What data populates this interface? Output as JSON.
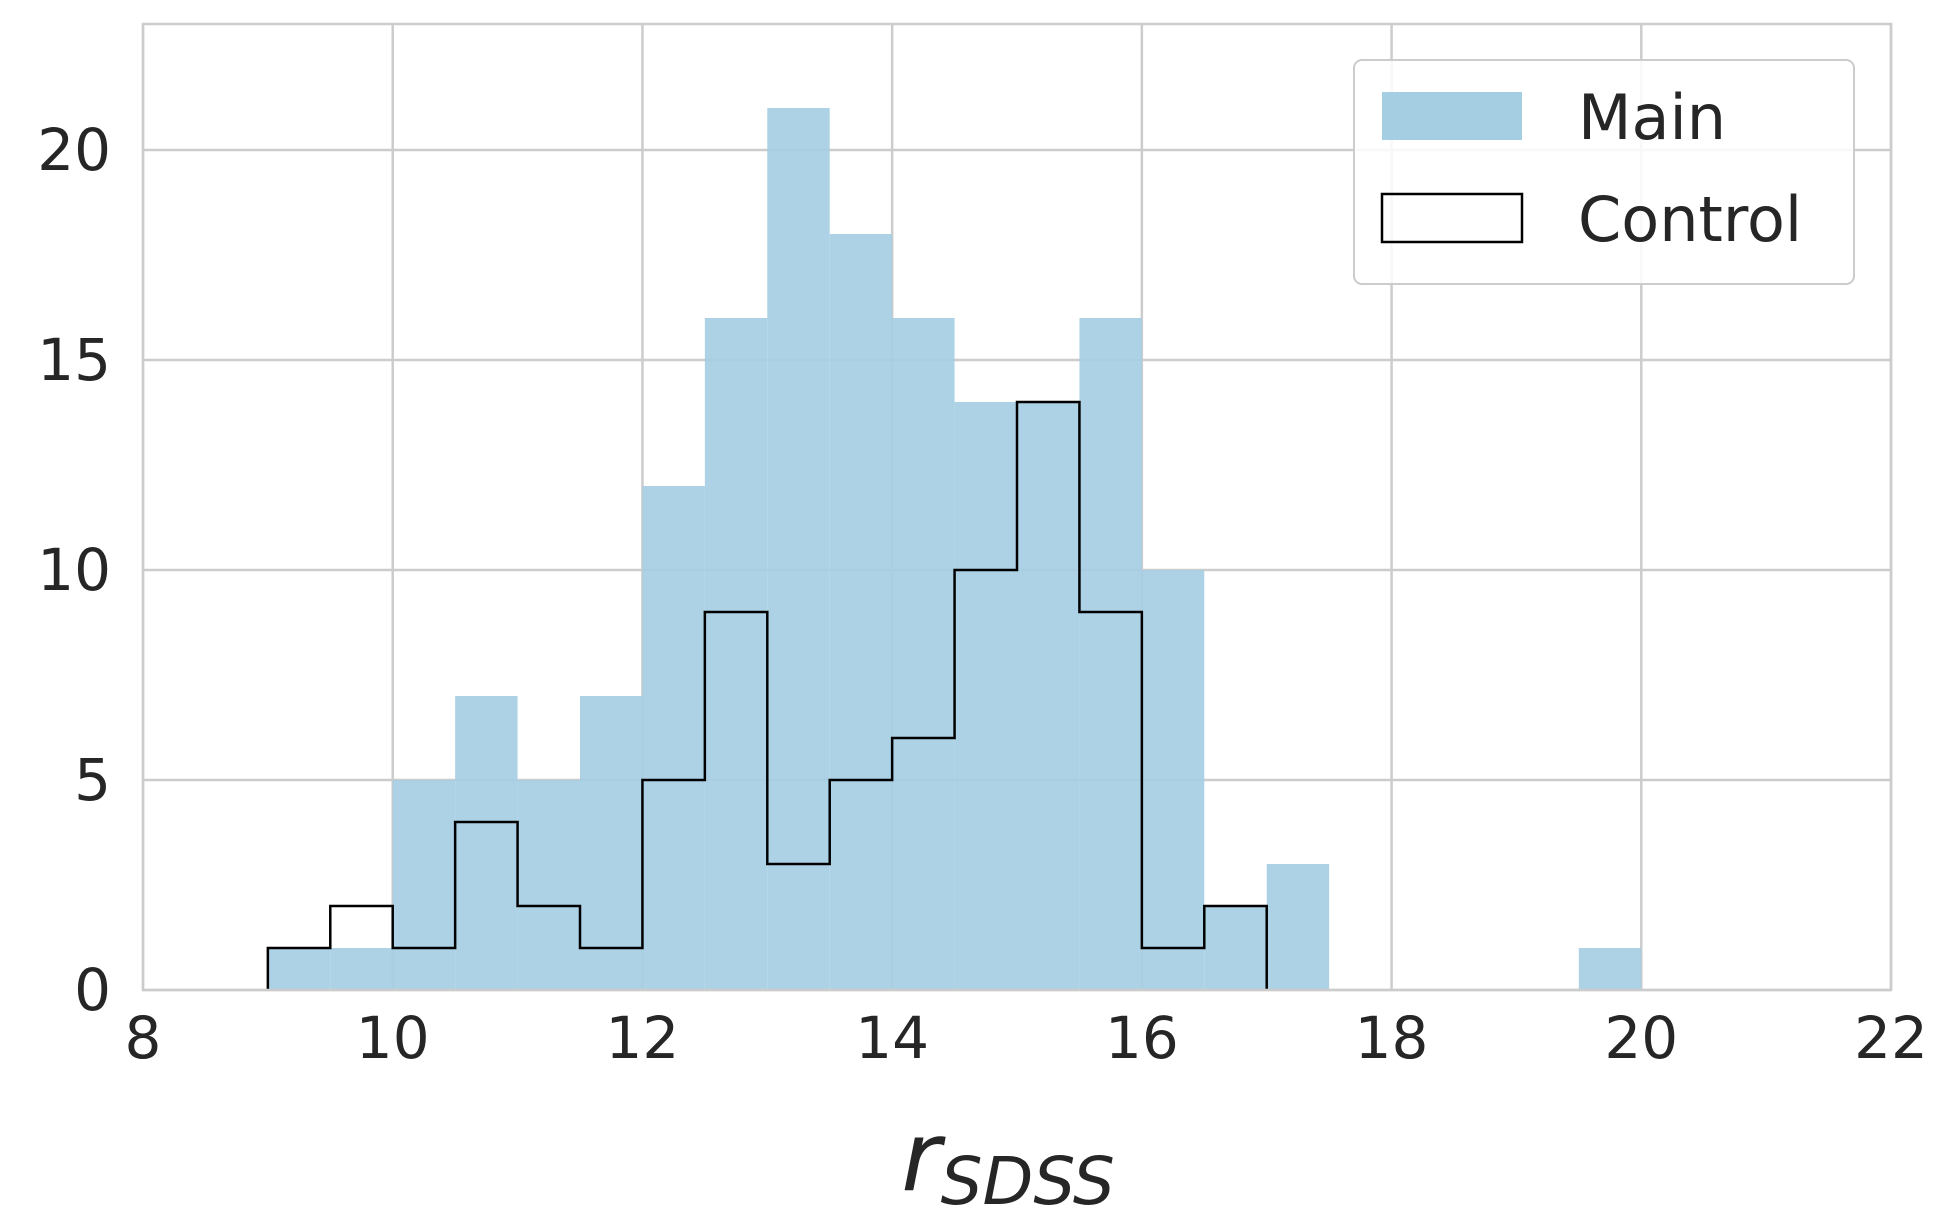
{
  "chart_data": {
    "type": "bar",
    "title": "",
    "xlabel_main": "r",
    "xlabel_sub": "SDSS",
    "ylabel": "",
    "xlim": [
      8,
      22
    ],
    "ylim": [
      0,
      23
    ],
    "grid": true,
    "legend_position": "top-right",
    "xticks": [
      8,
      10,
      12,
      14,
      16,
      18,
      20,
      22
    ],
    "yticks": [
      0,
      5,
      10,
      15,
      20
    ],
    "bin_edges": [
      9,
      9.5,
      10,
      10.5,
      11,
      11.5,
      12,
      12.5,
      13,
      13.5,
      14,
      14.5,
      15,
      15.5,
      16,
      16.5,
      17,
      17.5,
      18,
      18.5,
      19,
      19.5,
      20
    ],
    "series": [
      {
        "name": "Main",
        "style": "filled",
        "color": "#a6cee3",
        "values": [
          1,
          1,
          5,
          7,
          5,
          7,
          12,
          16,
          21,
          18,
          16,
          14,
          14,
          16,
          10,
          2,
          3,
          0,
          0,
          0,
          0,
          1
        ]
      },
      {
        "name": "Control",
        "style": "step",
        "color": "#000000",
        "values": [
          1,
          2,
          1,
          4,
          2,
          1,
          5,
          9,
          3,
          5,
          6,
          10,
          14,
          9,
          1,
          2,
          0,
          0,
          0,
          0,
          0,
          0
        ]
      }
    ],
    "colors": {
      "grid": "#cccccc",
      "axes_edge": "#cccccc",
      "text": "#262626"
    }
  }
}
